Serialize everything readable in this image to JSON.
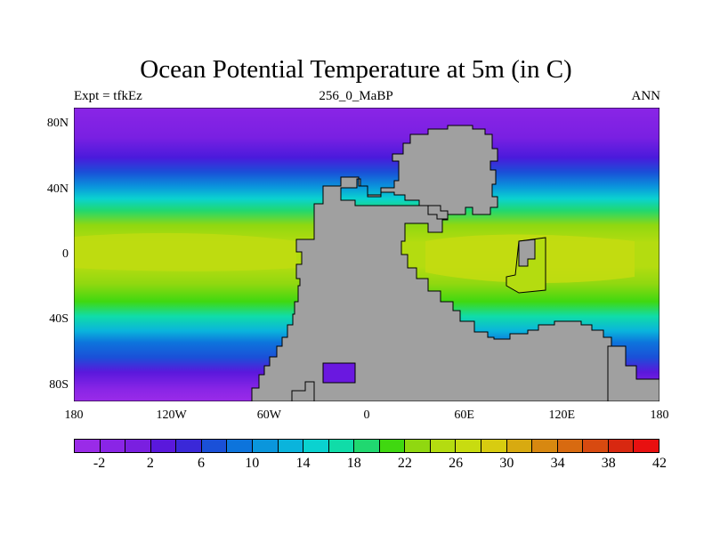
{
  "title": "Ocean Potential Temperature at 5m (in C)",
  "left_subtitle": "Expt = tfkEz",
  "center_subtitle": "256_0_MaBP",
  "right_subtitle": "ANN",
  "y_ticks": [
    {
      "label": "80N",
      "lat": 80
    },
    {
      "label": "40N",
      "lat": 40
    },
    {
      "label": "0",
      "lat": 0
    },
    {
      "label": "40S",
      "lat": -40
    },
    {
      "label": "80S",
      "lat": -80
    }
  ],
  "x_ticks": [
    {
      "label": "180",
      "lon": -180
    },
    {
      "label": "120W",
      "lon": -120
    },
    {
      "label": "60W",
      "lon": -60
    },
    {
      "label": "0",
      "lon": 0
    },
    {
      "label": "60E",
      "lon": 60
    },
    {
      "label": "120E",
      "lon": 120
    },
    {
      "label": "180",
      "lon": 180
    }
  ],
  "colorbar": {
    "colors": [
      "#9a2be8",
      "#8a25e6",
      "#7a1fe0",
      "#5a18dc",
      "#3a28d8",
      "#1a50d8",
      "#0d74dc",
      "#0a96dc",
      "#0ab4dc",
      "#0ad2d0",
      "#10dca8",
      "#20d870",
      "#40d810",
      "#90d810",
      "#b4dc10",
      "#c8dc10",
      "#d8cc10",
      "#d8aa10",
      "#d88810",
      "#d86a10",
      "#d84a10",
      "#d82810",
      "#e81010"
    ],
    "labels": [
      "-2",
      "2",
      "6",
      "10",
      "14",
      "18",
      "22",
      "26",
      "30",
      "34",
      "38",
      "42"
    ]
  },
  "land_color": "#a0a0a0"
}
